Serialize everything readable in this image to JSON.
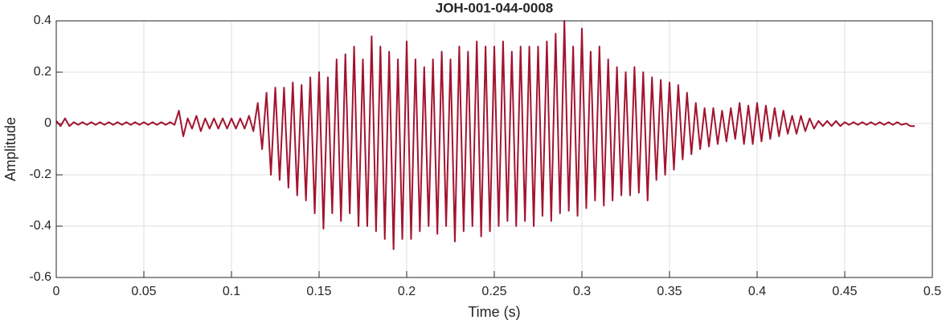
{
  "chart_data": {
    "type": "line",
    "title": "JOH-001-044-0008",
    "xlabel": "Time (s)",
    "ylabel": "Amplitude",
    "color": "#a2142f",
    "grid": true,
    "xlim": [
      0,
      0.5
    ],
    "ylim": [
      -0.6,
      0.4
    ],
    "xticks": [
      0,
      0.05,
      0.1,
      0.15,
      0.2,
      0.25,
      0.3,
      0.35,
      0.4,
      0.45,
      0.5
    ],
    "yticks": [
      -0.6,
      -0.4,
      -0.2,
      0,
      0.2,
      0.4
    ],
    "x": [
      0,
      0.0025,
      0.005,
      0.0075,
      0.01,
      0.0125,
      0.015,
      0.0175,
      0.02,
      0.0225,
      0.025,
      0.0275,
      0.03,
      0.0325,
      0.035,
      0.0375,
      0.04,
      0.0425,
      0.045,
      0.0475,
      0.05,
      0.0525,
      0.055,
      0.0575,
      0.06,
      0.0625,
      0.065,
      0.0675,
      0.07,
      0.0725,
      0.075,
      0.0775,
      0.08,
      0.0825,
      0.085,
      0.0875,
      0.09,
      0.0925,
      0.095,
      0.0975,
      0.1,
      0.1025,
      0.105,
      0.1075,
      0.11,
      0.1125,
      0.115,
      0.1175,
      0.12,
      0.1225,
      0.125,
      0.1275,
      0.13,
      0.1325,
      0.135,
      0.1375,
      0.14,
      0.1425,
      0.145,
      0.1475,
      0.15,
      0.1525,
      0.155,
      0.1575,
      0.16,
      0.1625,
      0.165,
      0.1675,
      0.17,
      0.1725,
      0.175,
      0.1775,
      0.18,
      0.1825,
      0.185,
      0.1875,
      0.19,
      0.1925,
      0.195,
      0.1975,
      0.2,
      0.2025,
      0.205,
      0.2075,
      0.21,
      0.2125,
      0.215,
      0.2175,
      0.22,
      0.2225,
      0.225,
      0.2275,
      0.23,
      0.2325,
      0.235,
      0.2375,
      0.24,
      0.2425,
      0.245,
      0.2475,
      0.25,
      0.2525,
      0.255,
      0.2575,
      0.26,
      0.2625,
      0.265,
      0.2675,
      0.27,
      0.2725,
      0.275,
      0.2775,
      0.28,
      0.2825,
      0.285,
      0.2875,
      0.29,
      0.2925,
      0.295,
      0.2975,
      0.3,
      0.3025,
      0.305,
      0.3075,
      0.31,
      0.3125,
      0.315,
      0.3175,
      0.32,
      0.3225,
      0.325,
      0.3275,
      0.33,
      0.3325,
      0.335,
      0.3375,
      0.34,
      0.3425,
      0.345,
      0.3475,
      0.35,
      0.3525,
      0.355,
      0.3575,
      0.36,
      0.3625,
      0.365,
      0.3675,
      0.37,
      0.3725,
      0.375,
      0.3775,
      0.38,
      0.3825,
      0.385,
      0.3875,
      0.39,
      0.3925,
      0.395,
      0.3975,
      0.4,
      0.4025,
      0.405,
      0.4075,
      0.41,
      0.4125,
      0.415,
      0.4175,
      0.42,
      0.4225,
      0.425,
      0.4275,
      0.43,
      0.4325,
      0.435,
      0.4375,
      0.44,
      0.4425,
      0.445,
      0.4475,
      0.45,
      0.4525,
      0.455,
      0.4575,
      0.46,
      0.4625,
      0.465,
      0.4675,
      0.47,
      0.4725,
      0.475,
      0.4775,
      0.48,
      0.4825,
      0.485,
      0.4875,
      0.49
    ],
    "values": [
      0.01,
      -0.01,
      0.02,
      -0.01,
      0.005,
      -0.005,
      0.005,
      -0.005,
      0.005,
      -0.005,
      0.005,
      -0.005,
      0.005,
      -0.005,
      0.005,
      -0.005,
      0.005,
      -0.005,
      0.005,
      -0.005,
      0.005,
      -0.005,
      0.005,
      -0.005,
      0.005,
      -0.005,
      0.005,
      -0.005,
      0.05,
      -0.05,
      0.02,
      -0.02,
      0.03,
      -0.03,
      0.02,
      -0.02,
      0.02,
      -0.02,
      0.02,
      -0.02,
      0.02,
      -0.02,
      0.02,
      -0.02,
      0.03,
      -0.03,
      0.08,
      -0.1,
      0.12,
      -0.2,
      0.14,
      -0.22,
      0.14,
      -0.25,
      0.16,
      -0.28,
      0.15,
      -0.3,
      0.18,
      -0.35,
      0.2,
      -0.41,
      0.18,
      -0.35,
      0.25,
      -0.38,
      0.27,
      -0.35,
      0.3,
      -0.4,
      0.25,
      -0.4,
      0.34,
      -0.42,
      0.3,
      -0.45,
      0.28,
      -0.49,
      0.25,
      -0.45,
      0.32,
      -0.45,
      0.25,
      -0.42,
      0.22,
      -0.4,
      0.25,
      -0.43,
      0.28,
      -0.4,
      0.25,
      -0.46,
      0.3,
      -0.42,
      0.28,
      -0.4,
      0.32,
      -0.44,
      0.3,
      -0.42,
      0.3,
      -0.4,
      0.32,
      -0.38,
      0.28,
      -0.4,
      0.3,
      -0.38,
      0.3,
      -0.4,
      0.3,
      -0.36,
      0.32,
      -0.38,
      0.35,
      -0.35,
      0.4,
      -0.34,
      0.3,
      -0.36,
      0.37,
      -0.33,
      0.28,
      -0.3,
      0.3,
      -0.32,
      0.25,
      -0.3,
      0.22,
      -0.28,
      0.2,
      -0.28,
      0.22,
      -0.27,
      0.2,
      -0.3,
      0.18,
      -0.22,
      0.17,
      -0.2,
      0.16,
      -0.18,
      0.15,
      -0.14,
      0.12,
      -0.12,
      0.08,
      -0.1,
      0.06,
      -0.09,
      0.06,
      -0.08,
      0.05,
      -0.07,
      0.06,
      -0.06,
      0.08,
      -0.08,
      0.07,
      -0.08,
      0.08,
      -0.07,
      0.07,
      -0.06,
      0.06,
      -0.05,
      0.05,
      -0.04,
      0.03,
      -0.04,
      0.03,
      -0.03,
      0.02,
      -0.02,
      0.01,
      -0.01,
      0.01,
      -0.01,
      0.01,
      -0.01,
      0.005,
      -0.005,
      0.005,
      -0.005,
      0.005,
      -0.005,
      0.005,
      -0.005,
      0.005,
      -0.005,
      0.005,
      -0.005,
      0.005,
      -0.005,
      0.0,
      -0.01,
      -0.01
    ]
  }
}
